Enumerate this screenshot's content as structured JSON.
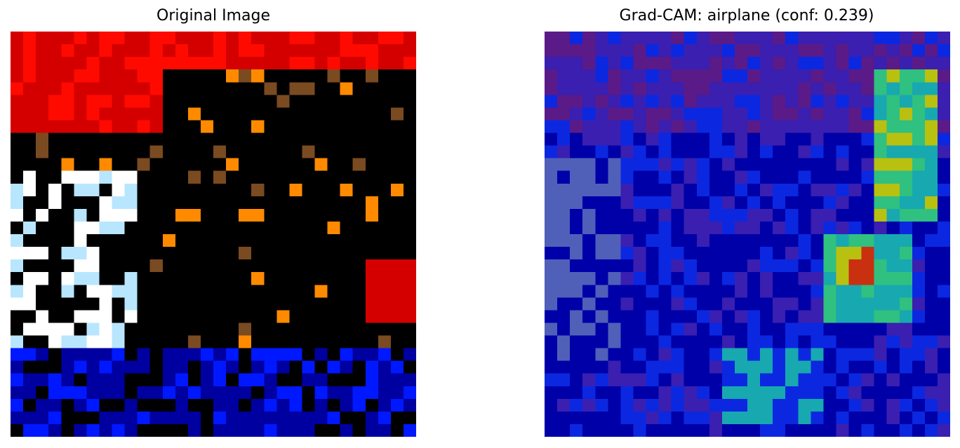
{
  "figure": {
    "left_panel": {
      "title": "Original Image"
    },
    "right_panel": {
      "title": "Grad-CAM: airplane (conf: 0.239)"
    }
  },
  "images": {
    "grid_size": 32,
    "original_description_colors": {
      "sky_red": "#d40000",
      "bright_red": "#ff0a00",
      "black": "#000000",
      "deep_blue": "#0000a0",
      "blue": "#0018ff",
      "white": "#ffffff",
      "light_blue": "#b8e6ff",
      "orange": "#ff8a00",
      "brown": "#7a4a20"
    },
    "gradcam_colors": {
      "deep_blue": "#0000a8",
      "blue": "#0b28e0",
      "purple": "#3a1fb0",
      "magenta_purple": "#5a1a88",
      "slate": "#5060b8",
      "teal": "#18a8b0",
      "green": "#30c080",
      "yellow": "#b8c010",
      "red": "#c83010"
    }
  }
}
